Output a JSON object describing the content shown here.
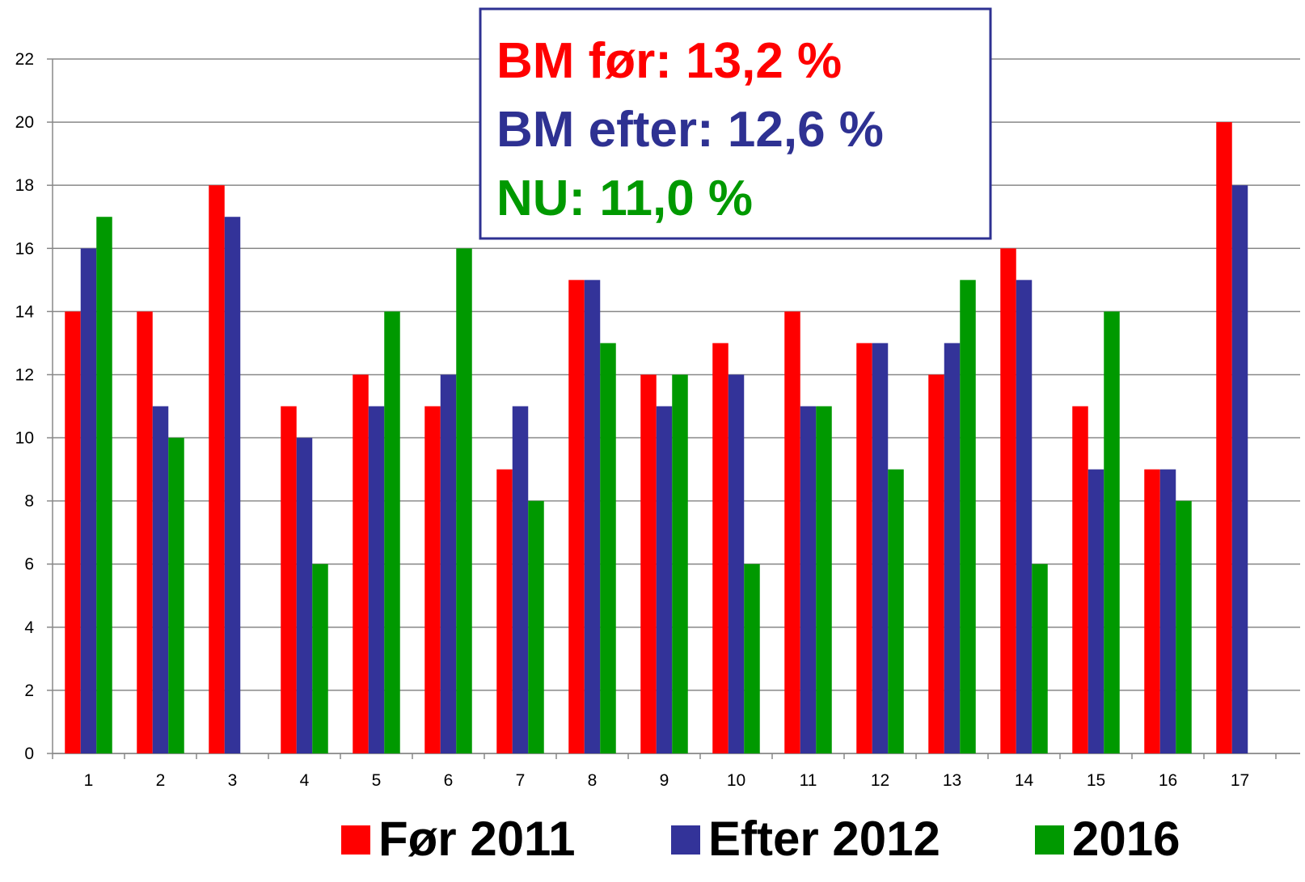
{
  "chart_data": {
    "type": "bar",
    "categories": [
      "1",
      "2",
      "3",
      "4",
      "5",
      "6",
      "7",
      "8",
      "9",
      "10",
      "11",
      "12",
      "13",
      "14",
      "15",
      "16",
      "17"
    ],
    "series": [
      {
        "name": "Før 2011",
        "color": "#ff0000",
        "values": [
          14,
          14,
          18,
          11,
          12,
          11,
          9,
          15,
          12,
          13,
          14,
          13,
          12,
          16,
          11,
          9,
          20
        ]
      },
      {
        "name": "Efter 2012",
        "color": "#333399",
        "values": [
          16,
          11,
          17,
          10,
          11,
          12,
          11,
          15,
          11,
          12,
          11,
          13,
          13,
          15,
          9,
          9,
          18
        ]
      },
      {
        "name": "2016",
        "color": "#009900",
        "values": [
          17,
          10,
          null,
          6,
          14,
          16,
          8,
          13,
          12,
          6,
          11,
          9,
          15,
          6,
          14,
          8,
          null
        ]
      }
    ],
    "ylim": [
      0,
      22
    ],
    "yticks": [
      0,
      2,
      4,
      6,
      8,
      10,
      12,
      14,
      16,
      18,
      20,
      22
    ],
    "grid": true,
    "annotations": [
      {
        "text": "BM før: 13,2 %",
        "color": "#ff0000"
      },
      {
        "text": "BM efter: 12,6 %",
        "color": "#2e3192"
      },
      {
        "text": "NU: 11,0 %",
        "color": "#009900"
      }
    ],
    "legend": "bottom"
  }
}
